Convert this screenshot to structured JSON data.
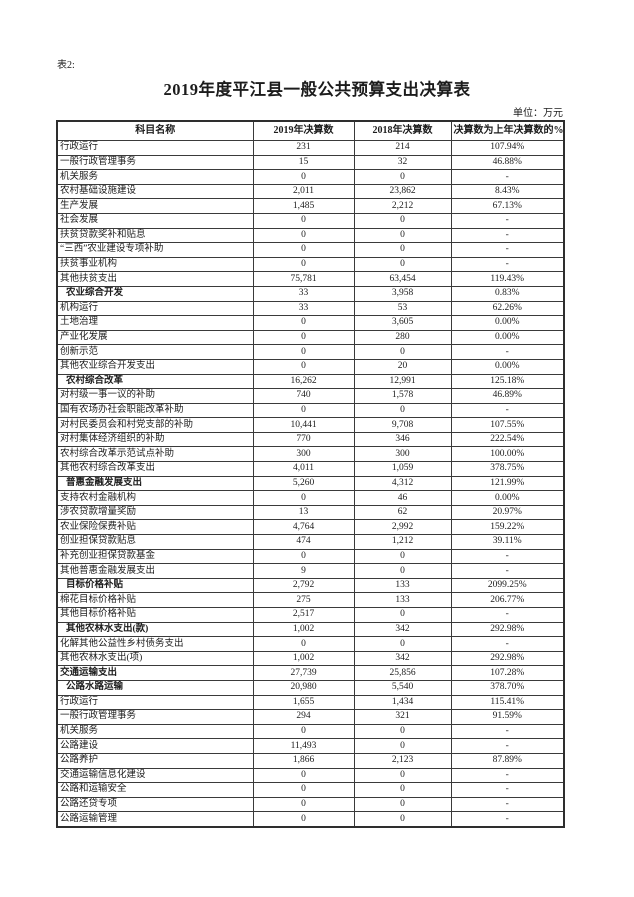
{
  "page": {
    "table_label": "表2:",
    "title": "2019年度平江县一般公共预算支出决算表",
    "unit_note": "单位：万元"
  },
  "table": {
    "columns": [
      "科目名称",
      "2019年决算数",
      "2018年决算数",
      "决算数为上年决算数的%"
    ],
    "rows": [
      {
        "name": "行政运行",
        "v2019": "231",
        "v2018": "214",
        "pct": "107.94%",
        "level": 2,
        "bold": false
      },
      {
        "name": "一般行政管理事务",
        "v2019": "15",
        "v2018": "32",
        "pct": "46.88%",
        "level": 2,
        "bold": false
      },
      {
        "name": "机关服务",
        "v2019": "0",
        "v2018": "0",
        "pct": "-",
        "level": 2,
        "bold": false
      },
      {
        "name": "农村基础设施建设",
        "v2019": "2,011",
        "v2018": "23,862",
        "pct": "8.43%",
        "level": 2,
        "bold": false
      },
      {
        "name": "生产发展",
        "v2019": "1,485",
        "v2018": "2,212",
        "pct": "67.13%",
        "level": 2,
        "bold": false
      },
      {
        "name": "社会发展",
        "v2019": "0",
        "v2018": "0",
        "pct": "-",
        "level": 2,
        "bold": false
      },
      {
        "name": "扶贫贷款奖补和贴息",
        "v2019": "0",
        "v2018": "0",
        "pct": "-",
        "level": 2,
        "bold": false
      },
      {
        "name": "“三西”农业建设专项补助",
        "v2019": "0",
        "v2018": "0",
        "pct": "-",
        "level": 2,
        "bold": false
      },
      {
        "name": "扶贫事业机构",
        "v2019": "0",
        "v2018": "0",
        "pct": "-",
        "level": 2,
        "bold": false
      },
      {
        "name": "其他扶贫支出",
        "v2019": "75,781",
        "v2018": "63,454",
        "pct": "119.43%",
        "level": 2,
        "bold": false
      },
      {
        "name": "农业综合开发",
        "v2019": "33",
        "v2018": "3,958",
        "pct": "0.83%",
        "level": 1,
        "bold": true
      },
      {
        "name": "机构运行",
        "v2019": "33",
        "v2018": "53",
        "pct": "62.26%",
        "level": 2,
        "bold": false
      },
      {
        "name": "土地治理",
        "v2019": "0",
        "v2018": "3,605",
        "pct": "0.00%",
        "level": 2,
        "bold": false
      },
      {
        "name": "产业化发展",
        "v2019": "0",
        "v2018": "280",
        "pct": "0.00%",
        "level": 2,
        "bold": false
      },
      {
        "name": "创新示范",
        "v2019": "0",
        "v2018": "0",
        "pct": "-",
        "level": 2,
        "bold": false
      },
      {
        "name": "其他农业综合开发支出",
        "v2019": "0",
        "v2018": "20",
        "pct": "0.00%",
        "level": 2,
        "bold": false
      },
      {
        "name": "农村综合改革",
        "v2019": "16,262",
        "v2018": "12,991",
        "pct": "125.18%",
        "level": 1,
        "bold": true
      },
      {
        "name": "对村级一事一议的补助",
        "v2019": "740",
        "v2018": "1,578",
        "pct": "46.89%",
        "level": 2,
        "bold": false
      },
      {
        "name": "国有农场办社会职能改革补助",
        "v2019": "0",
        "v2018": "0",
        "pct": "-",
        "level": 2,
        "bold": false
      },
      {
        "name": "对村民委员会和村党支部的补助",
        "v2019": "10,441",
        "v2018": "9,708",
        "pct": "107.55%",
        "level": 2,
        "bold": false
      },
      {
        "name": "对村集体经济组织的补助",
        "v2019": "770",
        "v2018": "346",
        "pct": "222.54%",
        "level": 2,
        "bold": false
      },
      {
        "name": "农村综合改革示范试点补助",
        "v2019": "300",
        "v2018": "300",
        "pct": "100.00%",
        "level": 2,
        "bold": false
      },
      {
        "name": "其他农村综合改革支出",
        "v2019": "4,011",
        "v2018": "1,059",
        "pct": "378.75%",
        "level": 2,
        "bold": false
      },
      {
        "name": "普惠金融发展支出",
        "v2019": "5,260",
        "v2018": "4,312",
        "pct": "121.99%",
        "level": 1,
        "bold": true
      },
      {
        "name": "支持农村金融机构",
        "v2019": "0",
        "v2018": "46",
        "pct": "0.00%",
        "level": 2,
        "bold": false
      },
      {
        "name": "涉农贷款增量奖励",
        "v2019": "13",
        "v2018": "62",
        "pct": "20.97%",
        "level": 2,
        "bold": false
      },
      {
        "name": "农业保险保费补贴",
        "v2019": "4,764",
        "v2018": "2,992",
        "pct": "159.22%",
        "level": 2,
        "bold": false
      },
      {
        "name": "创业担保贷款贴息",
        "v2019": "474",
        "v2018": "1,212",
        "pct": "39.11%",
        "level": 2,
        "bold": false
      },
      {
        "name": "补充创业担保贷款基金",
        "v2019": "0",
        "v2018": "0",
        "pct": "-",
        "level": 2,
        "bold": false
      },
      {
        "name": "其他普惠金融发展支出",
        "v2019": "9",
        "v2018": "0",
        "pct": "-",
        "level": 2,
        "bold": false
      },
      {
        "name": "目标价格补贴",
        "v2019": "2,792",
        "v2018": "133",
        "pct": "2099.25%",
        "level": 1,
        "bold": true
      },
      {
        "name": "棉花目标价格补贴",
        "v2019": "275",
        "v2018": "133",
        "pct": "206.77%",
        "level": 2,
        "bold": false
      },
      {
        "name": "其他目标价格补贴",
        "v2019": "2,517",
        "v2018": "0",
        "pct": "-",
        "level": 2,
        "bold": false
      },
      {
        "name": "其他农林水支出(款)",
        "v2019": "1,002",
        "v2018": "342",
        "pct": "292.98%",
        "level": 1,
        "bold": true
      },
      {
        "name": "化解其他公益性乡村债务支出",
        "v2019": "0",
        "v2018": "0",
        "pct": "-",
        "level": 2,
        "bold": false
      },
      {
        "name": "其他农林水支出(项)",
        "v2019": "1,002",
        "v2018": "342",
        "pct": "292.98%",
        "level": 2,
        "bold": false
      },
      {
        "name": "交通运输支出",
        "v2019": "27,739",
        "v2018": "25,856",
        "pct": "107.28%",
        "level": 0,
        "bold": true
      },
      {
        "name": "公路水路运输",
        "v2019": "20,980",
        "v2018": "5,540",
        "pct": "378.70%",
        "level": 1,
        "bold": true
      },
      {
        "name": "行政运行",
        "v2019": "1,655",
        "v2018": "1,434",
        "pct": "115.41%",
        "level": 2,
        "bold": false
      },
      {
        "name": "一般行政管理事务",
        "v2019": "294",
        "v2018": "321",
        "pct": "91.59%",
        "level": 2,
        "bold": false
      },
      {
        "name": "机关服务",
        "v2019": "0",
        "v2018": "0",
        "pct": "-",
        "level": 2,
        "bold": false
      },
      {
        "name": "公路建设",
        "v2019": "11,493",
        "v2018": "0",
        "pct": "-",
        "level": 2,
        "bold": false
      },
      {
        "name": "公路养护",
        "v2019": "1,866",
        "v2018": "2,123",
        "pct": "87.89%",
        "level": 2,
        "bold": false
      },
      {
        "name": "交通运输信息化建设",
        "v2019": "0",
        "v2018": "0",
        "pct": "-",
        "level": 2,
        "bold": false
      },
      {
        "name": "公路和运输安全",
        "v2019": "0",
        "v2018": "0",
        "pct": "-",
        "level": 2,
        "bold": false
      },
      {
        "name": "公路还贷专项",
        "v2019": "0",
        "v2018": "0",
        "pct": "-",
        "level": 2,
        "bold": false
      },
      {
        "name": "公路运输管理",
        "v2019": "0",
        "v2018": "0",
        "pct": "-",
        "level": 2,
        "bold": false
      }
    ]
  }
}
